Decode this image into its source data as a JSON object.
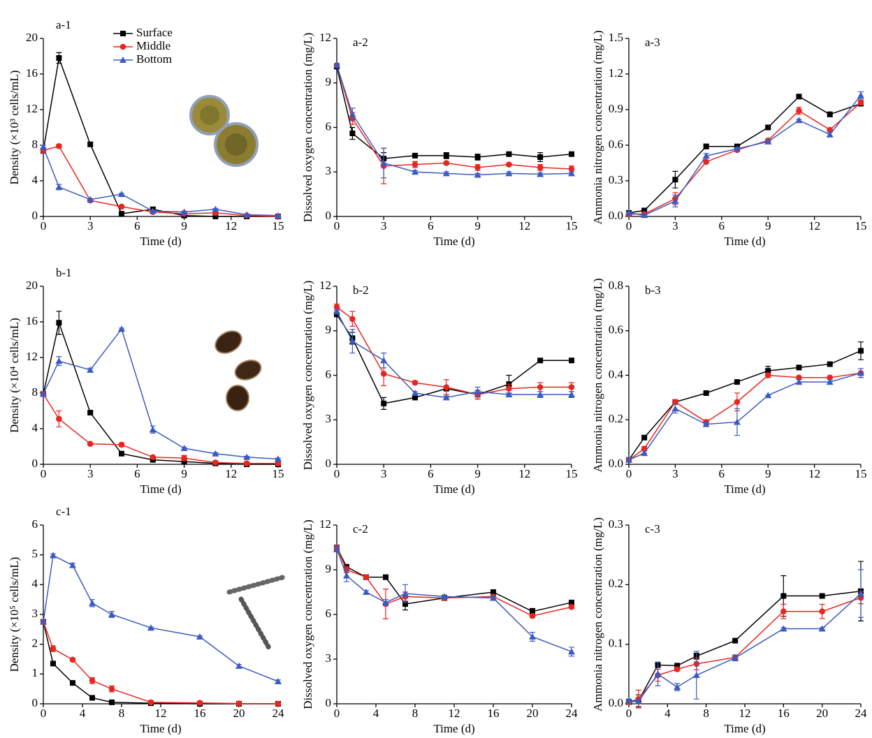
{
  "chart_data": [
    {
      "type": "line",
      "panel_label": "a-1",
      "x_label": "Time (d)",
      "y_label": "Density (×10³ cells/mL)",
      "x": [
        0,
        1,
        3,
        5,
        7,
        9,
        11,
        13,
        15
      ],
      "xlim": [
        0,
        15
      ],
      "xticks": [
        0,
        3,
        6,
        9,
        12,
        15
      ],
      "ylim": [
        0,
        20
      ],
      "yticks": [
        0,
        4,
        8,
        12,
        16,
        20
      ],
      "legend": "upper center",
      "series": [
        {
          "name": "Surface",
          "color": "#000000",
          "marker": "square",
          "values": [
            7.4,
            17.8,
            8.1,
            0.3,
            0.8,
            0.1,
            0.0,
            0.0,
            0.0
          ],
          "errors": [
            0.3,
            0.6,
            0.2,
            0.1,
            0.2,
            0,
            0,
            0,
            0
          ]
        },
        {
          "name": "Middle",
          "color": "#e8261f",
          "marker": "circle",
          "values": [
            7.4,
            7.9,
            1.8,
            1.1,
            0.5,
            0.3,
            0.4,
            0.1,
            0.0
          ],
          "errors": [
            0.2,
            0.2,
            0.1,
            0.1,
            0.1,
            0.1,
            0.1,
            0,
            0
          ]
        },
        {
          "name": "Bottom",
          "color": "#3a5bc2",
          "marker": "triangle",
          "values": [
            7.8,
            3.3,
            1.9,
            2.5,
            0.6,
            0.5,
            0.8,
            0.2,
            0.1
          ],
          "errors": [
            0.2,
            0.3,
            0.1,
            0.1,
            0.1,
            0.1,
            0.1,
            0,
            0
          ]
        }
      ]
    },
    {
      "type": "line",
      "panel_label": "a-2",
      "x_label": "Time (d)",
      "y_label": "Dissolved oxygen concentration (mg/L)",
      "x": [
        0,
        1,
        3,
        5,
        7,
        9,
        11,
        13,
        15
      ],
      "xlim": [
        0,
        15
      ],
      "xticks": [
        0,
        3,
        6,
        9,
        12,
        15
      ],
      "ylim": [
        0,
        12
      ],
      "yticks": [
        0,
        3,
        6,
        9,
        12
      ],
      "series": [
        {
          "color": "#000000",
          "marker": "square",
          "values": [
            10.1,
            5.6,
            3.9,
            4.1,
            4.1,
            4.0,
            4.2,
            4.0,
            4.2
          ],
          "errors": [
            0.1,
            0.4,
            0.4,
            0.1,
            0.2,
            0.2,
            0.1,
            0.3,
            0.1
          ]
        },
        {
          "color": "#e8261f",
          "marker": "circle",
          "values": [
            10.2,
            6.6,
            3.4,
            3.5,
            3.6,
            3.3,
            3.5,
            3.3,
            3.2
          ],
          "errors": [
            0.1,
            0.4,
            1.2,
            0.2,
            0.1,
            0.2,
            0.1,
            0.2,
            0.2
          ]
        },
        {
          "color": "#3a5bc2",
          "marker": "triangle",
          "values": [
            10.2,
            6.9,
            3.6,
            3.0,
            2.9,
            2.8,
            2.9,
            2.85,
            2.9
          ],
          "errors": [
            0.1,
            0.4,
            1.0,
            0.1,
            0.1,
            0.1,
            0.1,
            0.1,
            0.1
          ]
        }
      ]
    },
    {
      "type": "line",
      "panel_label": "a-3",
      "x_label": "Time (d)",
      "y_label": "Ammonia nitrogen concentration (mg/L)",
      "x": [
        0,
        1,
        3,
        5,
        7,
        9,
        11,
        13,
        15
      ],
      "xlim": [
        0,
        15
      ],
      "xticks": [
        0,
        3,
        6,
        9,
        12,
        15
      ],
      "ylim": [
        0,
        1.5
      ],
      "yticks": [
        {
          "value": 0,
          "label": "0.0"
        },
        0.3,
        0.6,
        0.9,
        1.2,
        1.5
      ],
      "series": [
        {
          "color": "#000000",
          "marker": "square",
          "values": [
            0.03,
            0.05,
            0.31,
            0.59,
            0.59,
            0.75,
            1.01,
            0.86,
            0.95
          ],
          "errors": [
            0.01,
            0.01,
            0.07,
            0.02,
            0.01,
            0.01,
            0.01,
            0.02,
            0.02
          ]
        },
        {
          "color": "#e8261f",
          "marker": "circle",
          "values": [
            0.02,
            0.02,
            0.15,
            0.46,
            0.56,
            0.64,
            0.89,
            0.73,
            0.96
          ],
          "errors": [
            0.01,
            0.01,
            0.05,
            0.01,
            0.01,
            0.01,
            0.03,
            0.01,
            0.02
          ]
        },
        {
          "color": "#3a5bc2",
          "marker": "triangle",
          "values": [
            0.03,
            0.01,
            0.13,
            0.51,
            0.57,
            0.63,
            0.81,
            0.69,
            1.02
          ],
          "errors": [
            0.01,
            0.01,
            0.05,
            0.02,
            0.01,
            0.01,
            0.01,
            0.02,
            0.03
          ]
        }
      ]
    },
    {
      "type": "line",
      "panel_label": "b-1",
      "x_label": "Time (d)",
      "y_label": "Density (×10⁴ cells/mL)",
      "x": [
        0,
        1,
        3,
        5,
        7,
        9,
        11,
        13,
        15
      ],
      "xlim": [
        0,
        15
      ],
      "xticks": [
        0,
        3,
        6,
        9,
        12,
        15
      ],
      "ylim": [
        0,
        20
      ],
      "yticks": [
        0,
        4,
        8,
        12,
        16,
        20
      ],
      "series": [
        {
          "color": "#000000",
          "marker": "square",
          "values": [
            7.9,
            15.9,
            5.8,
            1.2,
            0.5,
            0.3,
            0.1,
            0.0,
            0.0
          ],
          "errors": [
            0,
            1.3,
            0.1,
            0.1,
            0.1,
            0.1,
            0,
            0,
            0
          ]
        },
        {
          "color": "#e8261f",
          "marker": "circle",
          "values": [
            7.9,
            5.1,
            2.3,
            2.2,
            0.8,
            0.7,
            0.2,
            0.1,
            0.1
          ],
          "errors": [
            0,
            0.9,
            0.1,
            0.2,
            0.1,
            0.3,
            0.1,
            0,
            0
          ]
        },
        {
          "color": "#3a5bc2",
          "marker": "triangle",
          "values": [
            7.9,
            11.6,
            10.6,
            15.2,
            3.9,
            1.8,
            1.2,
            0.8,
            0.6
          ],
          "errors": [
            0,
            0.5,
            0.2,
            0.1,
            0.4,
            0.1,
            0.1,
            0.1,
            0.1
          ]
        }
      ]
    },
    {
      "type": "line",
      "panel_label": "b-2",
      "x_label": "Time (d)",
      "y_label": "Dissolved oxygen concentration (mg/L)",
      "x": [
        0,
        1,
        3,
        5,
        7,
        9,
        11,
        13,
        15
      ],
      "xlim": [
        0,
        15
      ],
      "xticks": [
        0,
        3,
        6,
        9,
        12,
        15
      ],
      "ylim": [
        0,
        12
      ],
      "yticks": [
        0,
        3,
        6,
        9,
        12
      ],
      "series": [
        {
          "color": "#000000",
          "marker": "square",
          "values": [
            10.1,
            8.5,
            4.1,
            4.5,
            5.1,
            4.7,
            5.4,
            7.0,
            7.0
          ],
          "errors": [
            0.1,
            0.4,
            0.4,
            0.1,
            0.1,
            0.3,
            0.6,
            0,
            0
          ]
        },
        {
          "color": "#e8261f",
          "marker": "circle",
          "values": [
            10.6,
            9.8,
            6.1,
            5.5,
            5.2,
            4.7,
            5.1,
            5.2,
            5.2
          ],
          "errors": [
            0.2,
            0.5,
            0.8,
            0.1,
            0.5,
            0.3,
            0.3,
            0.3,
            0.3
          ]
        },
        {
          "color": "#3a5bc2",
          "marker": "triangle",
          "values": [
            10.3,
            8.3,
            7.0,
            4.8,
            4.5,
            4.9,
            4.7,
            4.7,
            4.7
          ],
          "errors": [
            0.1,
            0.8,
            0.5,
            0.1,
            0.1,
            0.3,
            0.1,
            0.2,
            0.2
          ]
        }
      ]
    },
    {
      "type": "line",
      "panel_label": "b-3",
      "x_label": "Time (d)",
      "y_label": "Ammonia nitrogen concentration (mg/L)",
      "x": [
        0,
        1,
        3,
        5,
        7,
        9,
        11,
        13,
        15
      ],
      "xlim": [
        0,
        15
      ],
      "xticks": [
        0,
        3,
        6,
        9,
        12,
        15
      ],
      "ylim": [
        0,
        0.8
      ],
      "yticks": [
        {
          "value": 0,
          "label": "0.0"
        },
        0.2,
        0.4,
        0.6,
        0.8
      ],
      "series": [
        {
          "color": "#000000",
          "marker": "square",
          "values": [
            0.02,
            0.12,
            0.28,
            0.32,
            0.37,
            0.42,
            0.435,
            0.45,
            0.51
          ],
          "errors": [
            0,
            0,
            0.01,
            0,
            0,
            0.02,
            0,
            0,
            0.04
          ]
        },
        {
          "color": "#e8261f",
          "marker": "circle",
          "values": [
            0.02,
            0.07,
            0.28,
            0.19,
            0.28,
            0.4,
            0.39,
            0.39,
            0.41
          ],
          "errors": [
            0,
            0.01,
            0.01,
            0.01,
            0.04,
            0.01,
            0,
            0,
            0.02
          ]
        },
        {
          "color": "#3a5bc2",
          "marker": "triangle",
          "values": [
            0.02,
            0.05,
            0.25,
            0.18,
            0.19,
            0.31,
            0.37,
            0.37,
            0.41
          ],
          "errors": [
            0.01,
            0,
            0.02,
            0.01,
            0.06,
            0,
            0.01,
            0.01,
            0.02
          ]
        }
      ]
    },
    {
      "type": "line",
      "panel_label": "c-1",
      "x_label": "Time (d)",
      "y_label": "Density (×10⁵ cells/mL)",
      "x": [
        0,
        1,
        3,
        5,
        7,
        11,
        16,
        20,
        24
      ],
      "xlim": [
        0,
        24
      ],
      "xticks": [
        0,
        4,
        8,
        12,
        16,
        20,
        24
      ],
      "ylim": [
        0,
        6
      ],
      "yticks": [
        0,
        1,
        2,
        3,
        4,
        5,
        6
      ],
      "series": [
        {
          "color": "#000000",
          "marker": "square",
          "values": [
            2.75,
            1.35,
            0.7,
            0.2,
            0.05,
            0.02,
            0.0,
            0.0,
            0.0
          ],
          "errors": [
            0,
            0.03,
            0.03,
            0.02,
            0,
            0,
            0,
            0,
            0
          ]
        },
        {
          "color": "#e8261f",
          "marker": "circle",
          "values": [
            2.75,
            1.85,
            1.48,
            0.78,
            0.5,
            0.05,
            0.03,
            0.01,
            0.0
          ],
          "errors": [
            0,
            0.1,
            0.05,
            0.1,
            0.1,
            0,
            0,
            0,
            0
          ]
        },
        {
          "color": "#3a5bc2",
          "marker": "triangle",
          "values": [
            2.75,
            4.98,
            4.65,
            3.38,
            3.0,
            2.55,
            2.25,
            1.27,
            0.75
          ],
          "errors": [
            0,
            0.05,
            0.07,
            0.12,
            0.1,
            0.03,
            0.03,
            0.05,
            0.05
          ]
        }
      ]
    },
    {
      "type": "line",
      "panel_label": "c-2",
      "x_label": "Time (d)",
      "y_label": "Dissolved oxygen concentration (mg/L)",
      "x": [
        0,
        1,
        3,
        5,
        7,
        11,
        16,
        20,
        24
      ],
      "xlim": [
        0,
        24
      ],
      "xticks": [
        0,
        4,
        8,
        12,
        16,
        20,
        24
      ],
      "ylim": [
        0,
        12
      ],
      "yticks": [
        0,
        3,
        6,
        9,
        12
      ],
      "series": [
        {
          "color": "#000000",
          "marker": "square",
          "values": [
            10.5,
            9.2,
            8.5,
            8.5,
            6.7,
            7.1,
            7.5,
            6.2,
            6.8
          ],
          "errors": [
            0.1,
            0.1,
            0.1,
            0.1,
            0.4,
            0.1,
            0.1,
            0.2,
            0.1
          ]
        },
        {
          "color": "#e8261f",
          "marker": "circle",
          "values": [
            10.5,
            9.0,
            8.5,
            6.7,
            7.2,
            7.1,
            7.2,
            5.9,
            6.5
          ],
          "errors": [
            0.1,
            0.2,
            0.1,
            1.0,
            0.3,
            0.1,
            0.1,
            0.1,
            0.1
          ]
        },
        {
          "color": "#3a5bc2",
          "marker": "triangle",
          "values": [
            10.4,
            8.6,
            7.5,
            6.8,
            7.4,
            7.2,
            7.1,
            4.5,
            3.5
          ],
          "errors": [
            0.2,
            0.4,
            0.1,
            0.2,
            0.6,
            0.1,
            0.1,
            0.3,
            0.3
          ]
        }
      ]
    },
    {
      "type": "line",
      "panel_label": "c-3",
      "x_label": "Time (d)",
      "y_label": "Ammonia nitrogen concentration (mg/L)",
      "x": [
        0,
        1,
        3,
        5,
        7,
        11,
        16,
        20,
        24
      ],
      "xlim": [
        0,
        24
      ],
      "xticks": [
        0,
        4,
        8,
        12,
        16,
        20,
        24
      ],
      "ylim": [
        0,
        0.3
      ],
      "yticks": [
        {
          "value": 0,
          "label": "0.0"
        },
        0.1,
        0.2,
        0.3
      ],
      "series": [
        {
          "color": "#000000",
          "marker": "square",
          "values": [
            0.003,
            0.005,
            0.065,
            0.064,
            0.08,
            0.106,
            0.181,
            0.181,
            0.189
          ],
          "errors": [
            0,
            0.01,
            0,
            0,
            0.005,
            0,
            0.034,
            0,
            0.05
          ]
        },
        {
          "color": "#e8261f",
          "marker": "circle",
          "values": [
            0.003,
            0.008,
            0.048,
            0.058,
            0.067,
            0.078,
            0.155,
            0.155,
            0.178
          ],
          "errors": [
            0,
            0.015,
            0.01,
            0.003,
            0.01,
            0.003,
            0.012,
            0.012,
            0.01
          ]
        },
        {
          "color": "#3a5bc2",
          "marker": "triangle",
          "values": [
            0.006,
            0.004,
            0.05,
            0.028,
            0.048,
            0.077,
            0.126,
            0.126,
            0.185
          ],
          "errors": [
            0.002,
            0.003,
            0.02,
            0.006,
            0.04,
            0.005,
            0.002,
            0.002,
            0.04
          ]
        }
      ]
    }
  ]
}
